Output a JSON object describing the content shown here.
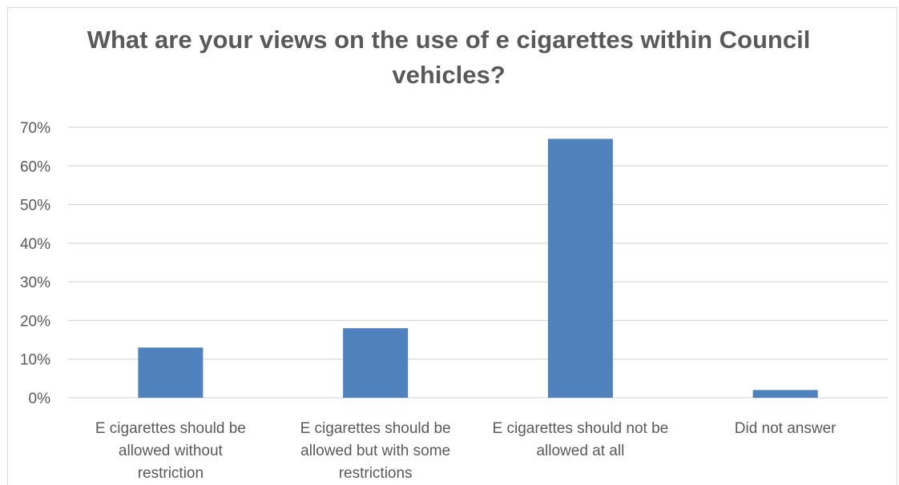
{
  "chart_data": {
    "type": "bar",
    "title": "What are your views on the use of e cigarettes within Council vehicles?",
    "categories": [
      [
        "E cigarettes should be",
        "allowed without",
        "restriction"
      ],
      [
        "E cigarettes should be",
        "allowed but with some",
        "restrictions"
      ],
      [
        "E cigarettes should not be",
        "allowed at all"
      ],
      [
        "Did not answer"
      ]
    ],
    "values": [
      0.13,
      0.18,
      0.67,
      0.02
    ],
    "ylim": [
      0,
      0.7
    ],
    "yticks": [
      "0%",
      "10%",
      "20%",
      "30%",
      "40%",
      "50%",
      "60%",
      "70%"
    ],
    "grid": true,
    "bar_color": "#4f81bd",
    "grid_color": "#d9d9d9"
  }
}
